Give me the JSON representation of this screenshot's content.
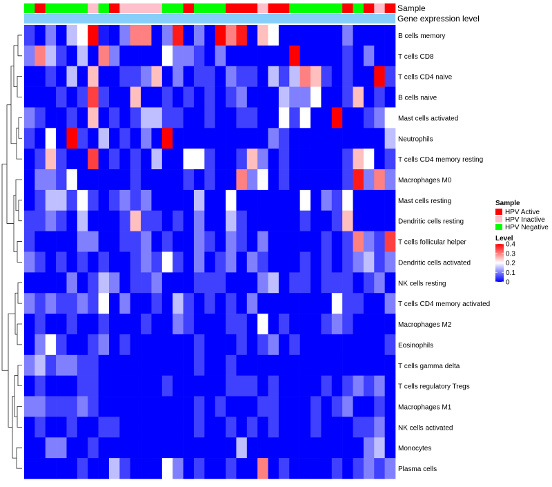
{
  "chart_data": {
    "type": "heatmap",
    "row_labels": [
      "B cells memory",
      "T cells CD8",
      "T cells CD4 naive",
      "B cells naive",
      "Mast cells activated",
      "Neutrophils",
      "T cells CD4 memory resting",
      "Macrophages M0",
      "Mast cells resting",
      "Dendritic cells resting",
      "T cells follicular helper",
      "Dendritic cells activated",
      "NK cells resting",
      "T cells CD4 memory activated",
      "Macrophages M2",
      "Eosinophils",
      "T cells gamma delta",
      "T cells regulatory  Tregs",
      "Macrophages M1",
      "NK cells activated",
      "Monocytes",
      "Plasma cells"
    ],
    "annotation_labels": {
      "sample": "Sample",
      "gene_expression": "Gene expression level"
    },
    "sample_groups": [
      "N",
      "A",
      "N",
      "N",
      "N",
      "N",
      "I",
      "N",
      "A",
      "I",
      "I",
      "I",
      "I",
      "N",
      "N",
      "A",
      "N",
      "N",
      "N",
      "A",
      "A",
      "A",
      "I",
      "A",
      "A",
      "N",
      "N",
      "N",
      "N",
      "N",
      "A",
      "N",
      "A",
      "I",
      "A"
    ],
    "values": [
      [
        0.05,
        0.0,
        0.1,
        0.0,
        0.15,
        0.2,
        0.4,
        0.02,
        0.0,
        0.1,
        0.3,
        0.3,
        0.0,
        0.1,
        0.38,
        0.0,
        0.1,
        0.0,
        0.4,
        0.3,
        0.38,
        0.0,
        0.25,
        0.2,
        0.0,
        0.0,
        0.0,
        0.0,
        0.0,
        0.0,
        0.1,
        0.0,
        0.0,
        0.0,
        0.0
      ],
      [
        0.1,
        0.3,
        0.15,
        0.05,
        0.0,
        0.15,
        0.0,
        0.3,
        0.1,
        0.0,
        0.0,
        0.0,
        0.0,
        0.2,
        0.1,
        0.1,
        0.05,
        0.0,
        0.1,
        0.0,
        0.0,
        0.0,
        0.0,
        0.0,
        0.0,
        0.4,
        0.0,
        0.0,
        0.0,
        0.0,
        0.05,
        0.0,
        0.1,
        0.0,
        0.0
      ],
      [
        0.0,
        0.0,
        0.05,
        0.0,
        0.15,
        0.0,
        0.25,
        0.0,
        0.0,
        0.05,
        0.05,
        0.1,
        0.25,
        0.0,
        0.1,
        0.0,
        0.05,
        0.05,
        0.0,
        0.1,
        0.05,
        0.05,
        0.0,
        0.15,
        0.05,
        0.15,
        0.3,
        0.25,
        0.05,
        0.0,
        0.05,
        0.0,
        0.0,
        0.4,
        0.05
      ],
      [
        0.0,
        0.0,
        0.0,
        0.05,
        0.0,
        0.05,
        0.35,
        0.05,
        0.0,
        0.0,
        0.25,
        0.0,
        0.0,
        0.05,
        0.0,
        0.05,
        0.0,
        0.05,
        0.0,
        0.05,
        0.1,
        0.0,
        0.0,
        0.0,
        0.15,
        0.1,
        0.1,
        0.2,
        0.0,
        0.0,
        0.05,
        0.25,
        0.0,
        0.05,
        0.0
      ],
      [
        0.1,
        0.05,
        0.0,
        0.0,
        0.05,
        0.0,
        0.25,
        0.0,
        0.05,
        0.0,
        0.05,
        0.15,
        0.15,
        0.05,
        0.05,
        0.0,
        0.0,
        0.05,
        0.0,
        0.0,
        0.05,
        0.05,
        0.0,
        0.0,
        0.2,
        0.05,
        0.2,
        0.0,
        0.0,
        0.4,
        0.0,
        0.0,
        0.05,
        0.1,
        0.2
      ],
      [
        0.05,
        0.0,
        0.2,
        0.0,
        0.4,
        0.05,
        0.0,
        0.15,
        0.0,
        0.05,
        0.0,
        0.1,
        0.0,
        0.4,
        0.0,
        0.0,
        0.0,
        0.0,
        0.0,
        0.0,
        0.0,
        0.0,
        0.0,
        0.1,
        0.05,
        0.0,
        0.0,
        0.0,
        0.0,
        0.0,
        0.0,
        0.0,
        0.0,
        0.0,
        0.15
      ],
      [
        0.0,
        0.05,
        0.25,
        0.05,
        0.0,
        0.0,
        0.35,
        0.0,
        0.05,
        0.0,
        0.05,
        0.0,
        0.15,
        0.0,
        0.0,
        0.2,
        0.2,
        0.05,
        0.0,
        0.0,
        0.05,
        0.25,
        0.1,
        0.0,
        0.05,
        0.0,
        0.0,
        0.0,
        0.0,
        0.0,
        0.05,
        0.25,
        0.2,
        0.0,
        0.05
      ],
      [
        0.0,
        0.1,
        0.1,
        0.05,
        0.2,
        0.0,
        0.0,
        0.0,
        0.0,
        0.0,
        0.05,
        0.0,
        0.0,
        0.0,
        0.0,
        0.05,
        0.0,
        0.05,
        0.0,
        0.0,
        0.3,
        0.1,
        0.2,
        0.0,
        0.05,
        0.0,
        0.0,
        0.0,
        0.0,
        0.0,
        0.05,
        0.38,
        0.1,
        0.3,
        0.1
      ],
      [
        0.0,
        0.05,
        0.15,
        0.15,
        0.05,
        0.2,
        0.05,
        0.0,
        0.05,
        0.1,
        0.05,
        0.1,
        0.0,
        0.0,
        0.0,
        0.0,
        0.15,
        0.0,
        0.0,
        0.2,
        0.0,
        0.0,
        0.0,
        0.0,
        0.0,
        0.0,
        0.2,
        0.0,
        0.1,
        0.05,
        0.2,
        0.0,
        0.0,
        0.0,
        0.0
      ],
      [
        0.05,
        0.05,
        0.1,
        0.05,
        0.0,
        0.15,
        0.0,
        0.0,
        0.0,
        0.05,
        0.25,
        0.05,
        0.05,
        0.0,
        0.05,
        0.0,
        0.1,
        0.0,
        0.0,
        0.15,
        0.05,
        0.0,
        0.0,
        0.0,
        0.0,
        0.0,
        0.05,
        0.0,
        0.0,
        0.05,
        0.25,
        0.0,
        0.0,
        0.0,
        0.0
      ],
      [
        0.05,
        0.0,
        0.0,
        0.0,
        0.0,
        0.1,
        0.1,
        0.0,
        0.0,
        0.05,
        0.05,
        0.1,
        0.0,
        0.05,
        0.0,
        0.0,
        0.1,
        0.05,
        0.0,
        0.1,
        0.05,
        0.0,
        0.1,
        0.0,
        0.0,
        0.0,
        0.0,
        0.0,
        0.05,
        0.0,
        0.05,
        0.3,
        0.1,
        0.05,
        0.35
      ],
      [
        0.1,
        0.05,
        0.0,
        0.05,
        0.0,
        0.05,
        0.0,
        0.05,
        0.0,
        0.0,
        0.05,
        0.1,
        0.05,
        0.2,
        0.05,
        0.0,
        0.1,
        0.0,
        0.05,
        0.1,
        0.0,
        0.1,
        0.05,
        0.0,
        0.0,
        0.0,
        0.05,
        0.0,
        0.05,
        0.0,
        0.05,
        0.1,
        0.15,
        0.05,
        0.1
      ],
      [
        0.0,
        0.0,
        0.0,
        0.0,
        0.1,
        0.0,
        0.05,
        0.15,
        0.1,
        0.0,
        0.05,
        0.05,
        0.1,
        0.0,
        0.0,
        0.0,
        0.05,
        0.05,
        0.05,
        0.0,
        0.0,
        0.0,
        0.1,
        0.15,
        0.0,
        0.05,
        0.05,
        0.0,
        0.05,
        0.05,
        0.05,
        0.0,
        0.05,
        0.1,
        0.0
      ],
      [
        0.1,
        0.05,
        0.1,
        0.05,
        0.05,
        0.1,
        0.05,
        0.2,
        0.0,
        0.1,
        0.0,
        0.0,
        0.05,
        0.0,
        0.15,
        0.05,
        0.0,
        0.05,
        0.0,
        0.05,
        0.0,
        0.1,
        0.0,
        0.0,
        0.0,
        0.0,
        0.0,
        0.0,
        0.0,
        0.2,
        0.05,
        0.05,
        0.0,
        0.0,
        0.1
      ],
      [
        0.0,
        0.05,
        0.0,
        0.0,
        0.05,
        0.0,
        0.0,
        0.05,
        0.0,
        0.0,
        0.0,
        0.05,
        0.0,
        0.0,
        0.1,
        0.05,
        0.0,
        0.0,
        0.0,
        0.05,
        0.05,
        0.0,
        0.2,
        0.0,
        0.05,
        0.0,
        0.0,
        0.0,
        0.05,
        0.1,
        0.05,
        0.0,
        0.0,
        0.0,
        0.0
      ],
      [
        0.0,
        0.1,
        0.2,
        0.05,
        0.0,
        0.0,
        0.05,
        0.1,
        0.0,
        0.05,
        0.0,
        0.0,
        0.0,
        0.0,
        0.0,
        0.0,
        0.05,
        0.0,
        0.0,
        0.0,
        0.05,
        0.0,
        0.05,
        0.1,
        0.0,
        0.05,
        0.0,
        0.0,
        0.0,
        0.0,
        0.0,
        0.0,
        0.0,
        0.0,
        0.05
      ],
      [
        0.1,
        0.15,
        0.05,
        0.1,
        0.1,
        0.05,
        0.05,
        0.0,
        0.0,
        0.0,
        0.0,
        0.0,
        0.0,
        0.0,
        0.0,
        0.0,
        0.05,
        0.0,
        0.0,
        0.05,
        0.0,
        0.0,
        0.0,
        0.0,
        0.0,
        0.0,
        0.0,
        0.0,
        0.0,
        0.0,
        0.0,
        0.0,
        0.0,
        0.0,
        0.0
      ],
      [
        0.0,
        0.05,
        0.0,
        0.0,
        0.0,
        0.05,
        0.05,
        0.0,
        0.0,
        0.0,
        0.0,
        0.0,
        0.0,
        0.05,
        0.0,
        0.0,
        0.0,
        0.0,
        0.0,
        0.05,
        0.05,
        0.05,
        0.0,
        0.05,
        0.0,
        0.0,
        0.0,
        0.0,
        0.05,
        0.0,
        0.05,
        0.1,
        0.05,
        0.1,
        0.0
      ],
      [
        0.1,
        0.1,
        0.05,
        0.05,
        0.05,
        0.1,
        0.05,
        0.0,
        0.0,
        0.0,
        0.0,
        0.0,
        0.0,
        0.0,
        0.0,
        0.0,
        0.05,
        0.0,
        0.05,
        0.0,
        0.0,
        0.0,
        0.05,
        0.05,
        0.0,
        0.0,
        0.0,
        0.05,
        0.0,
        0.05,
        0.1,
        0.0,
        0.0,
        0.05,
        0.0
      ],
      [
        0.0,
        0.05,
        0.0,
        0.0,
        0.05,
        0.0,
        0.0,
        0.05,
        0.05,
        0.0,
        0.0,
        0.0,
        0.0,
        0.0,
        0.0,
        0.0,
        0.05,
        0.0,
        0.0,
        0.05,
        0.0,
        0.05,
        0.0,
        0.05,
        0.0,
        0.0,
        0.0,
        0.05,
        0.0,
        0.0,
        0.0,
        0.05,
        0.05,
        0.1,
        0.0
      ],
      [
        0.0,
        0.0,
        0.1,
        0.1,
        0.0,
        0.0,
        0.05,
        0.0,
        0.0,
        0.0,
        0.0,
        0.0,
        0.0,
        0.0,
        0.0,
        0.0,
        0.0,
        0.0,
        0.0,
        0.0,
        0.15,
        0.0,
        0.0,
        0.0,
        0.0,
        0.0,
        0.0,
        0.0,
        0.0,
        0.0,
        0.0,
        0.0,
        0.1,
        0.15,
        0.0
      ],
      [
        0.0,
        0.0,
        0.0,
        0.0,
        0.0,
        0.05,
        0.0,
        0.0,
        0.15,
        0.05,
        0.0,
        0.0,
        0.0,
        0.2,
        0.1,
        0.0,
        0.05,
        0.0,
        0.0,
        0.05,
        0.0,
        0.0,
        0.3,
        0.0,
        0.05,
        0.0,
        0.0,
        0.0,
        0.0,
        0.05,
        0.0,
        0.05,
        0.1,
        0.05,
        0.1
      ]
    ],
    "color_scale": {
      "min": 0,
      "mid": 0.2,
      "max": 0.4,
      "low_color": "#0000ff",
      "mid_color": "#ffffff",
      "high_color": "#ff0000"
    },
    "legend": {
      "sample_title": "Sample",
      "sample_items": [
        {
          "key": "A",
          "label": "HPV Active",
          "color": "#ff0000"
        },
        {
          "key": "I",
          "label": "HPV Inactive",
          "color": "#ffc0cb"
        },
        {
          "key": "N",
          "label": "HPV Negative",
          "color": "#00ff00"
        }
      ],
      "level_title": "Level",
      "level_ticks": [
        0.4,
        0.3,
        0.2,
        0.1,
        0
      ],
      "level_tick_labels": [
        "0.4",
        "0.3",
        "0.2",
        "0.1",
        "0"
      ]
    },
    "gene_expression_color": "#87cefa",
    "legend_placement": "right"
  }
}
